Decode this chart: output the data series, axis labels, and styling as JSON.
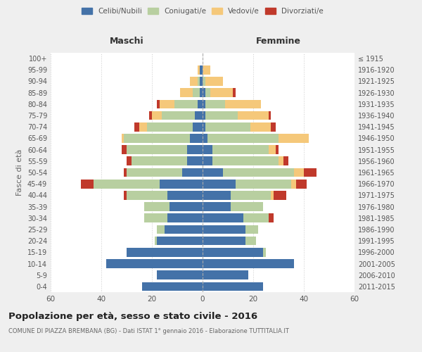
{
  "age_groups": [
    "0-4",
    "5-9",
    "10-14",
    "15-19",
    "20-24",
    "25-29",
    "30-34",
    "35-39",
    "40-44",
    "45-49",
    "50-54",
    "55-59",
    "60-64",
    "65-69",
    "70-74",
    "75-79",
    "80-84",
    "85-89",
    "90-94",
    "95-99",
    "100+"
  ],
  "birth_years": [
    "2011-2015",
    "2006-2010",
    "2001-2005",
    "1996-2000",
    "1991-1995",
    "1986-1990",
    "1981-1985",
    "1976-1980",
    "1971-1975",
    "1966-1970",
    "1961-1965",
    "1956-1960",
    "1951-1955",
    "1946-1950",
    "1941-1945",
    "1936-1940",
    "1931-1935",
    "1926-1930",
    "1921-1925",
    "1916-1920",
    "≤ 1915"
  ],
  "maschi": {
    "celibi": [
      24,
      18,
      38,
      30,
      18,
      15,
      14,
      13,
      14,
      17,
      8,
      6,
      6,
      5,
      4,
      3,
      2,
      1,
      1,
      1,
      0
    ],
    "coniugati": [
      0,
      0,
      0,
      0,
      1,
      3,
      9,
      10,
      16,
      26,
      22,
      22,
      24,
      26,
      18,
      13,
      9,
      3,
      1,
      0,
      0
    ],
    "vedovi": [
      0,
      0,
      0,
      0,
      0,
      0,
      0,
      0,
      0,
      0,
      0,
      0,
      0,
      1,
      3,
      4,
      6,
      5,
      3,
      1,
      0
    ],
    "divorziati": [
      0,
      0,
      0,
      0,
      0,
      0,
      0,
      0,
      1,
      5,
      1,
      2,
      2,
      0,
      2,
      1,
      1,
      0,
      0,
      0,
      0
    ]
  },
  "femmine": {
    "nubili": [
      24,
      18,
      36,
      24,
      17,
      17,
      16,
      11,
      11,
      13,
      8,
      4,
      4,
      2,
      1,
      1,
      1,
      1,
      0,
      0,
      0
    ],
    "coniugate": [
      0,
      0,
      0,
      1,
      4,
      5,
      10,
      13,
      16,
      22,
      28,
      26,
      22,
      28,
      18,
      13,
      8,
      2,
      1,
      0,
      0
    ],
    "vedove": [
      0,
      0,
      0,
      0,
      0,
      0,
      0,
      0,
      1,
      2,
      4,
      2,
      3,
      12,
      8,
      12,
      14,
      9,
      7,
      3,
      0
    ],
    "divorziate": [
      0,
      0,
      0,
      0,
      0,
      0,
      2,
      0,
      5,
      4,
      5,
      2,
      1,
      0,
      2,
      1,
      0,
      1,
      0,
      0,
      0
    ]
  },
  "colors": {
    "celibi": "#4472a8",
    "coniugati": "#b8cfa0",
    "vedovi": "#f5c87a",
    "divorziati": "#c0392b"
  },
  "xlim": 60,
  "title": "Popolazione per età, sesso e stato civile - 2016",
  "subtitle": "COMUNE DI PIAZZA BREMBANA (BG) - Dati ISTAT 1° gennaio 2016 - Elaborazione TUTTITALIA.IT",
  "ylabel_left": "Fasce di età",
  "xlabel_left": "Maschi",
  "xlabel_right": "Femmine",
  "bg_color": "#efefef",
  "plot_bg_color": "#ffffff"
}
